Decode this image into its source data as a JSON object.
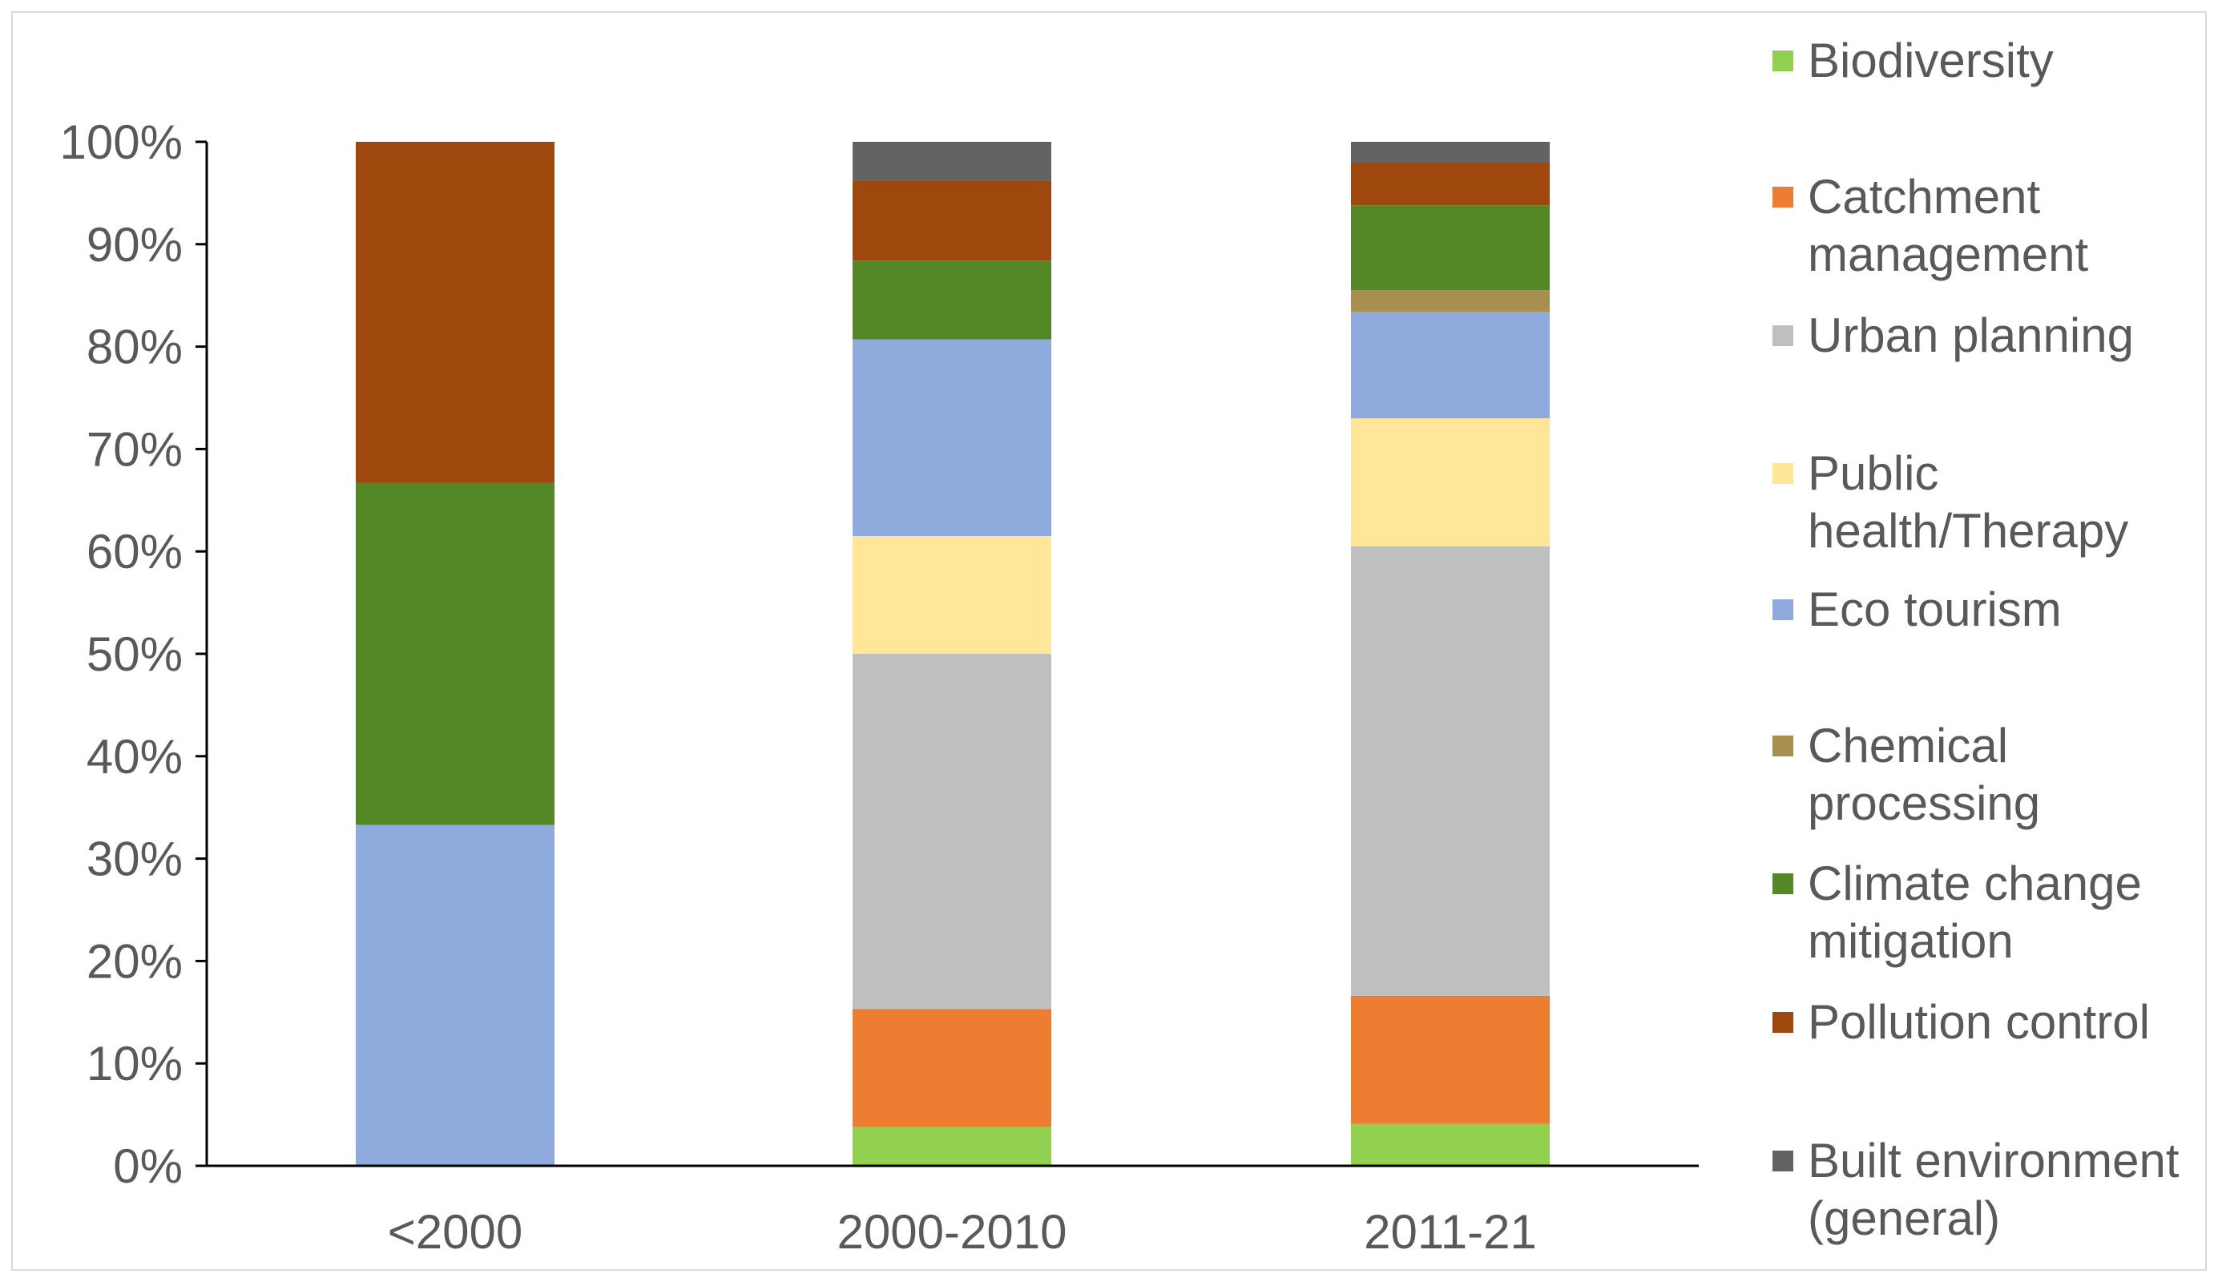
{
  "chart_data": {
    "type": "bar",
    "stacked": true,
    "orientation": "vertical",
    "categories": [
      "<2000",
      "2000-2010",
      "2011-21"
    ],
    "ylim": [
      0,
      100
    ],
    "y_tick_labels": [
      "0%",
      "10%",
      "20%",
      "30%",
      "40%",
      "50%",
      "60%",
      "70%",
      "80%",
      "90%",
      "100%"
    ],
    "grid": false,
    "legend_position": "right",
    "series": [
      {
        "name": "Biodiversity",
        "legend_lines": [
          "Biodiversity"
        ],
        "color": "#92d050",
        "values": [
          0,
          3.8,
          4.1
        ]
      },
      {
        "name": "Catchment management",
        "legend_lines": [
          "Catchment",
          "management"
        ],
        "color": "#ed7d31",
        "values": [
          0,
          11.5,
          12.5
        ]
      },
      {
        "name": "Urban planning",
        "legend_lines": [
          "Urban planning"
        ],
        "color": "#bfbfbf",
        "values": [
          0,
          34.7,
          43.9
        ]
      },
      {
        "name": "Public health/Therapy",
        "legend_lines": [
          "Public",
          "health/Therapy"
        ],
        "color": "#ffe699",
        "values": [
          0,
          11.5,
          12.5
        ]
      },
      {
        "name": "Eco tourism",
        "legend_lines": [
          "Eco tourism"
        ],
        "color": "#8faadc",
        "values": [
          33.3,
          19.2,
          10.4
        ]
      },
      {
        "name": "Chemical processing",
        "legend_lines": [
          "Chemical",
          "processing"
        ],
        "color": "#a98f4f",
        "values": [
          0,
          0,
          2.1
        ]
      },
      {
        "name": "Climate change mitigation",
        "legend_lines": [
          "Climate change",
          "mitigation"
        ],
        "color": "#548827",
        "values": [
          33.4,
          7.7,
          8.3
        ]
      },
      {
        "name": "Pollution control",
        "legend_lines": [
          "Pollution control"
        ],
        "color": "#9e480e",
        "values": [
          33.3,
          7.8,
          4.2
        ]
      },
      {
        "name": "Built environment (general)",
        "legend_lines": [
          "Built environment",
          "(general)"
        ],
        "color": "#636363",
        "values": [
          0,
          3.8,
          2.0
        ]
      }
    ]
  },
  "colors": {
    "axis": "#000000",
    "tick_text": "#595959",
    "frame": "#d9d9d9",
    "background": "#ffffff"
  }
}
